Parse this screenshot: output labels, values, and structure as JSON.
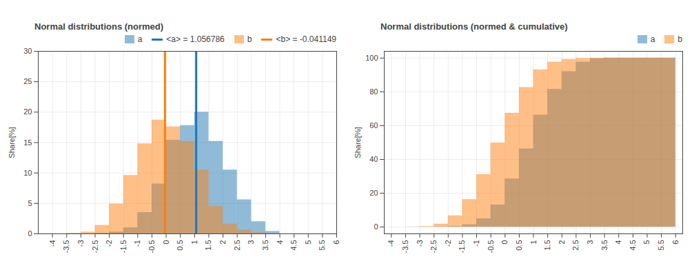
{
  "chart_data": [
    {
      "type": "histogram",
      "title": "Normal distributions (normed)",
      "y_label": "Share[%]",
      "bins": [
        -4,
        -3.5,
        -3,
        -2.5,
        -2,
        -1.5,
        -1,
        -0.5,
        0,
        0.5,
        1,
        1.5,
        2,
        2.5,
        3,
        3.5,
        4,
        4.5,
        5,
        5.5,
        6
      ],
      "xlim": [
        -4.5,
        6
      ],
      "xticks": [
        -4,
        -3.5,
        -3,
        -2.5,
        -2,
        -1.5,
        -1,
        -0.5,
        0,
        0.5,
        1,
        1.5,
        2,
        2.5,
        3,
        3.5,
        4,
        4.5,
        5,
        5.5,
        6
      ],
      "ylim": [
        0,
        30
      ],
      "yticks": [
        0,
        5,
        10,
        15,
        20,
        25,
        30
      ],
      "grid": true,
      "legend": "top-right",
      "series": [
        {
          "name": "a",
          "color": "#1f77b4",
          "values": [
            0,
            0,
            0,
            0.1,
            0.3,
            1.0,
            3.5,
            8.2,
            15.4,
            17.8,
            20.0,
            15.2,
            10.5,
            5.6,
            2.0,
            0.4,
            0,
            0,
            0,
            0
          ],
          "mean": 1.056786,
          "mean_label": "<a> = 1.056786"
        },
        {
          "name": "b",
          "color": "#ff7f0e",
          "values": [
            0,
            0.1,
            0.3,
            1.4,
            4.9,
            9.6,
            14.8,
            18.7,
            17.6,
            15.2,
            10.5,
            4.5,
            1.6,
            0.6,
            0.2,
            0,
            0,
            0,
            0,
            0
          ],
          "mean": -0.041149,
          "mean_label": "<b> = -0.041149"
        }
      ]
    },
    {
      "type": "histogram",
      "title": "Normal distributions (normed & cumulative)",
      "y_label": "Share[%]",
      "bins": [
        -4,
        -3.5,
        -3,
        -2.5,
        -2,
        -1.5,
        -1,
        -0.5,
        0,
        0.5,
        1,
        1.5,
        2,
        2.5,
        3,
        3.5,
        4,
        4.5,
        5,
        5.5,
        6
      ],
      "xlim": [
        -4.25,
        6.25
      ],
      "xticks": [
        -4,
        -3.5,
        -3,
        -2.5,
        -2,
        -1.5,
        -1,
        -0.5,
        0,
        0.5,
        1,
        1.5,
        2,
        2.5,
        3,
        3.5,
        4,
        4.5,
        5,
        5.5,
        6
      ],
      "ylim": [
        -4,
        104
      ],
      "yticks": [
        0,
        20,
        40,
        60,
        80,
        100
      ],
      "grid": true,
      "legend": "top-right",
      "series": [
        {
          "name": "a",
          "color": "#1f77b4",
          "values": [
            0,
            0,
            0,
            0.1,
            0.4,
            1.4,
            4.9,
            13.1,
            28.5,
            46.3,
            66.3,
            81.5,
            92.0,
            97.6,
            99.6,
            100,
            100,
            100,
            100,
            100
          ]
        },
        {
          "name": "b",
          "color": "#ff7f0e",
          "values": [
            0,
            0.1,
            0.4,
            1.8,
            6.7,
            16.3,
            31.1,
            49.8,
            67.4,
            82.6,
            93.1,
            97.6,
            99.2,
            99.8,
            100,
            100,
            100,
            100,
            100,
            100
          ]
        }
      ]
    }
  ]
}
